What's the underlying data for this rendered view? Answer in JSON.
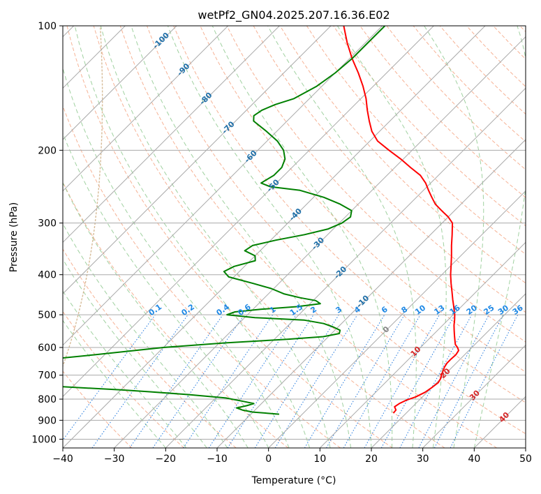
{
  "chart_data": {
    "type": "line",
    "title": "wetPf2_GN04.2025.207.16.36.E02",
    "xlabel": "Temperature (°C)",
    "ylabel": "Pressure (hPa)",
    "xlim": [
      -40,
      50
    ],
    "ylim": [
      1050,
      100
    ],
    "y_scale": "log",
    "x_ticks": [
      "−40",
      "−30",
      "−20",
      "−10",
      "0",
      "10",
      "20",
      "30",
      "40",
      "50"
    ],
    "x_tick_values": [
      -40,
      -30,
      -20,
      -10,
      0,
      10,
      20,
      30,
      40,
      50
    ],
    "y_ticks": [
      "100",
      "200",
      "300",
      "400",
      "500",
      "600",
      "700",
      "800",
      "900",
      "1000"
    ],
    "y_tick_values": [
      100,
      200,
      300,
      400,
      500,
      600,
      700,
      800,
      900,
      1000
    ],
    "grid": true,
    "skew_factor": 42,
    "temperature_series": {
      "color": "#ff0000",
      "points": [
        [
          865,
          17.5
        ],
        [
          850,
          17.4
        ],
        [
          835,
          16.5
        ],
        [
          820,
          16.8
        ],
        [
          805,
          17.5
        ],
        [
          790,
          18.7
        ],
        [
          770,
          19.6
        ],
        [
          750,
          20.0
        ],
        [
          730,
          20.3
        ],
        [
          715,
          20.0
        ],
        [
          700,
          19.5
        ],
        [
          685,
          19.0
        ],
        [
          670,
          18.5
        ],
        [
          655,
          18.2
        ],
        [
          640,
          18.2
        ],
        [
          625,
          18.3
        ],
        [
          610,
          18.0
        ],
        [
          600,
          17.2
        ],
        [
          590,
          16.2
        ],
        [
          575,
          15.2
        ],
        [
          560,
          14.2
        ],
        [
          545,
          13.2
        ],
        [
          530,
          12.2
        ],
        [
          515,
          11.3
        ],
        [
          500,
          10.3
        ],
        [
          480,
          8.7
        ],
        [
          460,
          7.0
        ],
        [
          440,
          5.3
        ],
        [
          420,
          3.5
        ],
        [
          400,
          1.7
        ],
        [
          380,
          0.0
        ],
        [
          360,
          -1.8
        ],
        [
          340,
          -3.8
        ],
        [
          320,
          -5.8
        ],
        [
          300,
          -8.0
        ],
        [
          290,
          -10.0
        ],
        [
          280,
          -12.5
        ],
        [
          270,
          -15.0
        ],
        [
          260,
          -17.0
        ],
        [
          250,
          -19.0
        ],
        [
          240,
          -21.0
        ],
        [
          230,
          -23.5
        ],
        [
          220,
          -27.0
        ],
        [
          210,
          -30.5
        ],
        [
          200,
          -34.5
        ],
        [
          190,
          -38.5
        ],
        [
          180,
          -41.5
        ],
        [
          170,
          -44.0
        ],
        [
          160,
          -46.5
        ],
        [
          150,
          -49.0
        ],
        [
          140,
          -52.0
        ],
        [
          130,
          -55.5
        ],
        [
          120,
          -59.5
        ],
        [
          110,
          -63.5
        ],
        [
          100,
          -67.5
        ]
      ]
    },
    "dewpoint_series": {
      "color": "#008000",
      "points": [
        [
          870,
          -4.5
        ],
        [
          860,
          -10.0
        ],
        [
          850,
          -12.5
        ],
        [
          840,
          -14.0
        ],
        [
          830,
          -12.5
        ],
        [
          820,
          -11.5
        ],
        [
          810,
          -14.0
        ],
        [
          795,
          -18.0
        ],
        [
          780,
          -26.0
        ],
        [
          768,
          -34.0
        ],
        [
          760,
          -40.0
        ],
        [
          740,
          -58.0
        ],
        [
          728,
          -68.0
        ],
        [
          720,
          -62.0
        ],
        [
          712,
          -59.0
        ],
        [
          705,
          -66.0
        ],
        [
          692,
          -73.0
        ],
        [
          680,
          -75.0
        ],
        [
          665,
          -70.0
        ],
        [
          645,
          -62.0
        ],
        [
          625,
          -52.0
        ],
        [
          600,
          -40.0
        ],
        [
          585,
          -29.0
        ],
        [
          573,
          -17.5
        ],
        [
          565,
          -11.0
        ],
        [
          555,
          -8.5
        ],
        [
          545,
          -9.0
        ],
        [
          535,
          -11.0
        ],
        [
          525,
          -13.5
        ],
        [
          515,
          -18.0
        ],
        [
          508,
          -28.0
        ],
        [
          500,
          -34.0
        ],
        [
          492,
          -33.0
        ],
        [
          485,
          -28.5
        ],
        [
          478,
          -22.0
        ],
        [
          470,
          -18.0
        ],
        [
          462,
          -19.5
        ],
        [
          455,
          -23.0
        ],
        [
          445,
          -27.0
        ],
        [
          432,
          -30.5
        ],
        [
          420,
          -35.0
        ],
        [
          405,
          -41.0
        ],
        [
          393,
          -43.0
        ],
        [
          382,
          -42.0
        ],
        [
          370,
          -39.0
        ],
        [
          360,
          -40.0
        ],
        [
          350,
          -43.0
        ],
        [
          340,
          -42.5
        ],
        [
          330,
          -39.0
        ],
        [
          320,
          -34.5
        ],
        [
          310,
          -31.0
        ],
        [
          300,
          -29.5
        ],
        [
          290,
          -29.0
        ],
        [
          280,
          -30.0
        ],
        [
          270,
          -33.5
        ],
        [
          260,
          -38.0
        ],
        [
          250,
          -44.0
        ],
        [
          245,
          -50.5
        ],
        [
          240,
          -53.0
        ],
        [
          235,
          -52.5
        ],
        [
          230,
          -52.0
        ],
        [
          220,
          -52.0
        ],
        [
          210,
          -53.0
        ],
        [
          200,
          -55.0
        ],
        [
          190,
          -58.0
        ],
        [
          180,
          -62.0
        ],
        [
          170,
          -66.5
        ],
        [
          165,
          -67.5
        ],
        [
          160,
          -67.0
        ],
        [
          155,
          -65.5
        ],
        [
          150,
          -63.0
        ],
        [
          140,
          -61.0
        ],
        [
          130,
          -60.0
        ],
        [
          120,
          -59.5
        ],
        [
          110,
          -59.5
        ],
        [
          100,
          -59.5
        ]
      ]
    },
    "mixing_ratio_labels": [
      "0.1",
      "0.2",
      "0.4",
      "0.6",
      "1",
      "1.5",
      "2",
      "3",
      "4",
      "6",
      "8",
      "10",
      "13",
      "16",
      "20",
      "25",
      "30",
      "36"
    ],
    "mixing_ratio_values": [
      0.1,
      0.2,
      0.4,
      0.6,
      1,
      1.5,
      2,
      3,
      4,
      6,
      8,
      10,
      13,
      16,
      20,
      25,
      30,
      36
    ],
    "temperature_line_labels": [
      "-100",
      "-90",
      "-80",
      "-70",
      "-60",
      "-50",
      "-40",
      "-30",
      "-20",
      "-10",
      "0",
      "10",
      "20",
      "30",
      "40"
    ],
    "temperature_line_values": [
      -100,
      -90,
      -80,
      -70,
      -60,
      -50,
      -40,
      -30,
      -20,
      -10,
      0,
      10,
      20,
      30,
      40
    ],
    "colors": {
      "isotherm": "#aaaaaa",
      "isobar": "#aaaaaa",
      "dry_adiabat": "#f4a582",
      "moist_adiabat": "#8fc98f",
      "mixing_ratio": "#1f77dd",
      "mixing_ratio_label": "#1e88e5",
      "cold_label": "#1f6fa8",
      "warm_label": "#d62728",
      "zero_label": "#888888",
      "ccn_curve": "#d2b48c"
    }
  }
}
